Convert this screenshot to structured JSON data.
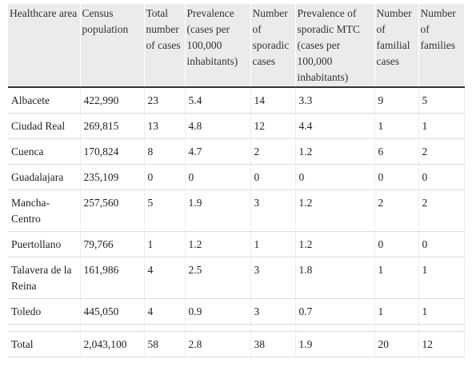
{
  "table": {
    "header": [
      "Healthcare area",
      "Census population",
      "Total number of cases",
      "Prevalence (cases per 100,000 inhabitants)",
      "Number of sporadic cases",
      "Prevalence of sporadic MTC (cases per 100,000 inhabitants)",
      "Number of familial cases",
      "Number of families"
    ],
    "rows": [
      [
        "Albacete",
        "422,990",
        "23",
        "5.4",
        "14",
        "3.3",
        "9",
        "5"
      ],
      [
        "Ciudad Real",
        "269,815",
        "13",
        "4.8",
        "12",
        "4.4",
        "1",
        "1"
      ],
      [
        "Cuenca",
        "170,824",
        "8",
        "4.7",
        "2",
        "1.2",
        "6",
        "2"
      ],
      [
        "Guadalajara",
        "235,109",
        "0",
        "0",
        "0",
        "0",
        "0",
        "0"
      ],
      [
        "Mancha-Centro",
        "257,560",
        "5",
        "1.9",
        "3",
        "1.2",
        "2",
        "2"
      ],
      [
        "Puertollano",
        "79,766",
        "1",
        "1.2",
        "1",
        "1.2",
        "0",
        "0"
      ],
      [
        "Talavera de la Reina",
        "161,986",
        "4",
        "2.5",
        "3",
        "1.8",
        "1",
        "1"
      ],
      [
        "Toledo",
        "445,050",
        "4",
        "0.9",
        "3",
        "0.7",
        "1",
        "1"
      ]
    ],
    "total": [
      "Total",
      "2,043,100",
      "58",
      "2.8",
      "38",
      "1.9",
      "20",
      "12"
    ]
  }
}
